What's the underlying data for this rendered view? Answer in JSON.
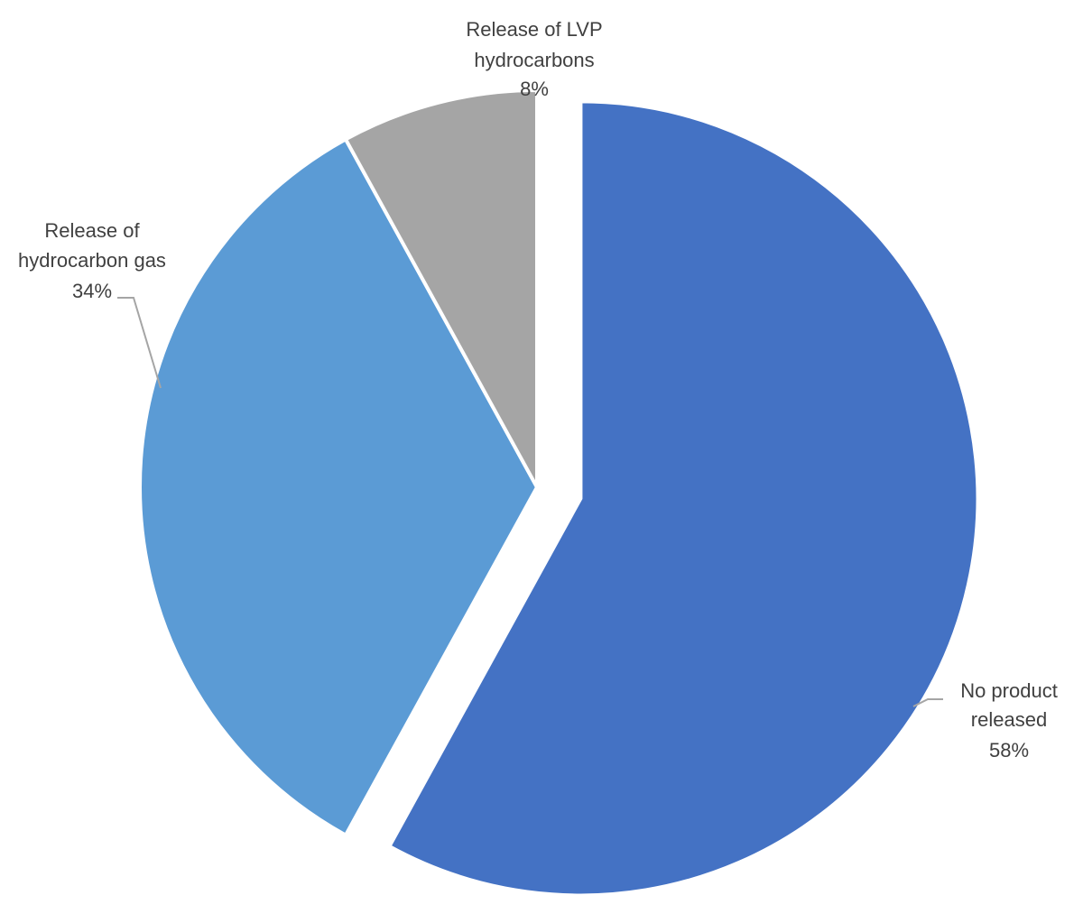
{
  "chart_data": {
    "type": "pie",
    "title": "",
    "start_angle_deg": 0,
    "direction": "clockwise",
    "slices": [
      {
        "label": [
          "No product",
          "released"
        ],
        "value": 58,
        "value_label": "58%",
        "color": "#4472C4",
        "exploded": true
      },
      {
        "label": [
          "Release of",
          "hydrocarbon gas"
        ],
        "value": 34,
        "value_label": "34%",
        "color": "#5B9BD5",
        "exploded": false
      },
      {
        "label": [
          "Release of LVP",
          "hydrocarbons"
        ],
        "value": 8,
        "value_label": "8%",
        "color": "#A5A5A5",
        "exploded": false
      }
    ],
    "legend": "none",
    "leader_line_color": "#A5A5A5"
  }
}
